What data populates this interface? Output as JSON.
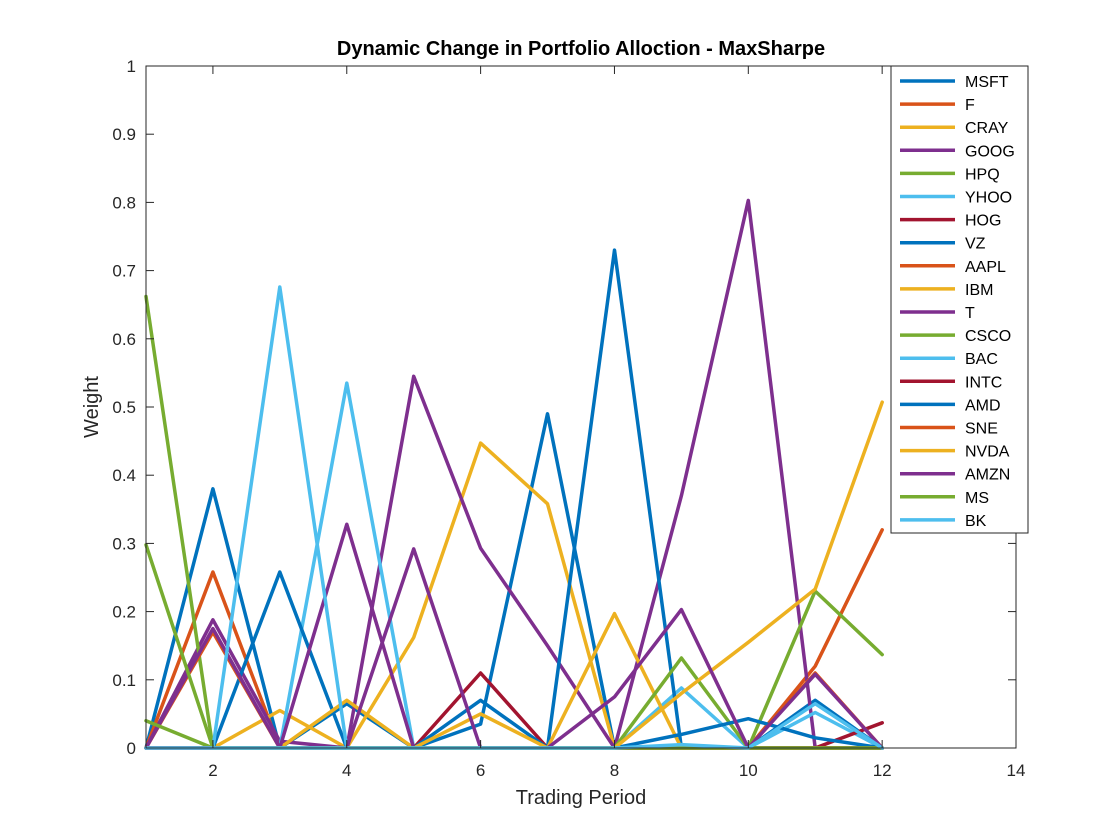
{
  "chart_data": {
    "type": "line",
    "title": "Dynamic Change in Portfolio Alloction - MaxSharpe",
    "xlabel": "Trading Period",
    "ylabel": "Weight",
    "xlim": [
      1,
      14
    ],
    "ylim": [
      0,
      1
    ],
    "xticks": [
      2,
      4,
      6,
      8,
      10,
      12,
      14
    ],
    "yticks": [
      0,
      0.1,
      0.2,
      0.3,
      0.4,
      0.5,
      0.6,
      0.7,
      0.8,
      0.9,
      1
    ],
    "ytick_labels": [
      "0",
      "0.1",
      "0.2",
      "0.3",
      "0.4",
      "0.5",
      "0.6",
      "0.7",
      "0.8",
      "0.9",
      "1"
    ],
    "legend_position": "top-right",
    "grid": false,
    "x": [
      1,
      2,
      3,
      4,
      5,
      6,
      7,
      8,
      9,
      10,
      11,
      12
    ],
    "series": [
      {
        "name": "MSFT",
        "color": "#0072BD",
        "values": [
          0,
          0.38,
          0,
          0.065,
          0,
          0.035,
          0.49,
          0,
          0,
          0,
          0.07,
          0
        ]
      },
      {
        "name": "F",
        "color": "#D95319",
        "values": [
          0,
          0.258,
          0,
          0,
          0,
          0,
          0,
          0,
          0,
          0,
          0.12,
          0.32
        ]
      },
      {
        "name": "CRAY",
        "color": "#EDB120",
        "values": [
          0,
          0,
          0.055,
          0,
          0.162,
          0.447,
          0.358,
          0,
          0,
          0,
          0,
          0
        ]
      },
      {
        "name": "GOOG",
        "color": "#7E2F8E",
        "values": [
          0,
          0.188,
          0.01,
          0,
          0.545,
          0.293,
          0.15,
          0,
          0.37,
          0.803,
          0,
          0
        ]
      },
      {
        "name": "HPQ",
        "color": "#77AC30",
        "values": [
          0.662,
          0,
          0,
          0,
          0,
          0,
          0,
          0,
          0,
          0,
          0.23,
          0.137
        ]
      },
      {
        "name": "YHOO",
        "color": "#4DBEEE",
        "values": [
          0,
          0,
          0,
          0.535,
          0,
          0,
          0,
          0,
          0.088,
          0,
          0.052,
          0
        ]
      },
      {
        "name": "HOG",
        "color": "#A2142F",
        "values": [
          0,
          0,
          0,
          0,
          0,
          0.11,
          0,
          0,
          0,
          0,
          0,
          0.037
        ]
      },
      {
        "name": "VZ",
        "color": "#0072BD",
        "values": [
          0,
          0,
          0.258,
          0,
          0,
          0.07,
          0,
          0.73,
          0,
          0,
          0,
          0
        ]
      },
      {
        "name": "AAPL",
        "color": "#D95319",
        "values": [
          0,
          0.17,
          0,
          0,
          0,
          0,
          0,
          0,
          0,
          0,
          0.11,
          0
        ]
      },
      {
        "name": "IBM",
        "color": "#EDB120",
        "values": [
          0,
          0,
          0,
          0.07,
          0,
          0.05,
          0,
          0.197,
          0,
          0,
          0,
          0
        ]
      },
      {
        "name": "T",
        "color": "#7E2F8E",
        "values": [
          0,
          0.175,
          0,
          0.328,
          0,
          0,
          0,
          0,
          0,
          0,
          0,
          0
        ]
      },
      {
        "name": "CSCO",
        "color": "#77AC30",
        "values": [
          0.04,
          0,
          0,
          0,
          0,
          0,
          0,
          0,
          0.132,
          0,
          0,
          0
        ]
      },
      {
        "name": "BAC",
        "color": "#4DBEEE",
        "values": [
          0,
          0,
          0.676,
          0,
          0,
          0,
          0,
          0,
          0,
          0,
          0,
          0
        ]
      },
      {
        "name": "INTC",
        "color": "#A2142F",
        "values": [
          0,
          0,
          0,
          0,
          0,
          0,
          0,
          0,
          0,
          0,
          0,
          0
        ]
      },
      {
        "name": "AMD",
        "color": "#0072BD",
        "values": [
          0,
          0,
          0,
          0,
          0,
          0,
          0,
          0,
          0.02,
          0.043,
          0.015,
          0
        ]
      },
      {
        "name": "SNE",
        "color": "#D95319",
        "values": [
          0,
          0,
          0,
          0,
          0,
          0,
          0,
          0,
          0,
          0,
          0,
          0
        ]
      },
      {
        "name": "NVDA",
        "color": "#EDB120",
        "values": [
          0,
          0,
          0,
          0,
          0,
          0,
          0,
          0,
          0.08,
          0.155,
          0.233,
          0.507
        ]
      },
      {
        "name": "AMZN",
        "color": "#7E2F8E",
        "values": [
          0,
          0,
          0,
          0,
          0.292,
          0,
          0,
          0.075,
          0.203,
          0,
          0.108,
          0
        ]
      },
      {
        "name": "MS",
        "color": "#77AC30",
        "values": [
          0.298,
          0,
          0,
          0,
          0,
          0,
          0,
          0,
          0,
          0,
          0,
          0
        ]
      },
      {
        "name": "BK",
        "color": "#4DBEEE",
        "values": [
          0,
          0,
          0,
          0,
          0,
          0,
          0,
          0,
          0.005,
          0,
          0.065,
          0
        ]
      }
    ]
  }
}
